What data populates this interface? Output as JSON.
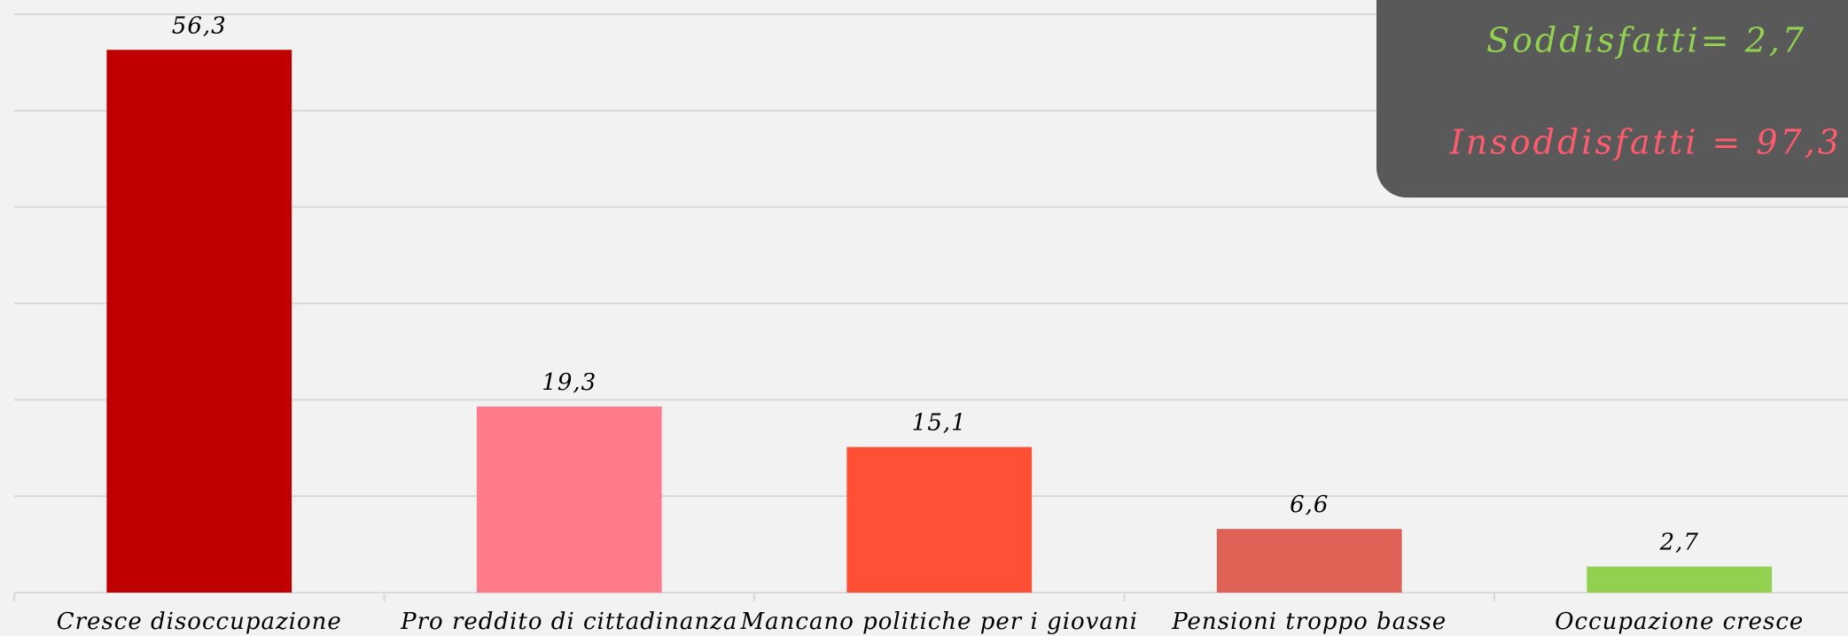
{
  "chart_data": {
    "type": "bar",
    "categories": [
      "Cresce disoccupazione",
      "Pro reddito di cittadinanza",
      "Mancano politiche per i giovani",
      "Pensioni troppo basse",
      "Occupazione cresce"
    ],
    "values": [
      56.3,
      19.3,
      15.1,
      6.6,
      2.7
    ],
    "value_labels": [
      "56,3",
      "19,3",
      "15,1",
      "6,6",
      "2,7"
    ],
    "colors": [
      "#c00000",
      "#ff7b89",
      "#ff5035",
      "#dd6255",
      "#92d050"
    ],
    "ylim": [
      0,
      60
    ],
    "yticks": [
      0,
      10,
      20,
      30,
      40,
      50,
      60
    ],
    "grid": true,
    "annotations": [
      {
        "text": "Soddisfatti= 2,7",
        "color": "#92d050"
      },
      {
        "text": "Insoddisfatti = 97,3",
        "color": "#ff5a6e"
      }
    ]
  }
}
